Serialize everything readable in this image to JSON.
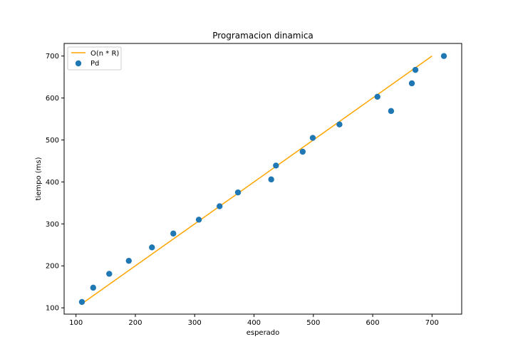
{
  "chart_data": {
    "type": "scatter",
    "title": "Programacion dinamica",
    "xlabel": "esperado",
    "ylabel": "tiempo (ms)",
    "xlim": [
      80,
      750
    ],
    "ylim": [
      85,
      730
    ],
    "xticks": [
      100,
      200,
      300,
      400,
      500,
      600,
      700
    ],
    "yticks": [
      100,
      200,
      300,
      400,
      500,
      600,
      700
    ],
    "grid": false,
    "legend_position": "top-left",
    "line_series": {
      "name": "O(n * R)",
      "color": "#ffa500",
      "x": [
        110,
        700
      ],
      "y": [
        110,
        700
      ]
    },
    "scatter_series": {
      "name": "Pd",
      "color": "#1f77b4",
      "x": [
        110,
        129,
        156,
        189,
        228,
        264,
        307,
        342,
        373,
        429,
        437,
        482,
        499,
        544,
        608,
        631,
        666,
        672,
        720
      ],
      "y": [
        114,
        148,
        181,
        212,
        244,
        277,
        310,
        342,
        375,
        406,
        439,
        472,
        505,
        537,
        603,
        569,
        635,
        667,
        700
      ]
    }
  }
}
